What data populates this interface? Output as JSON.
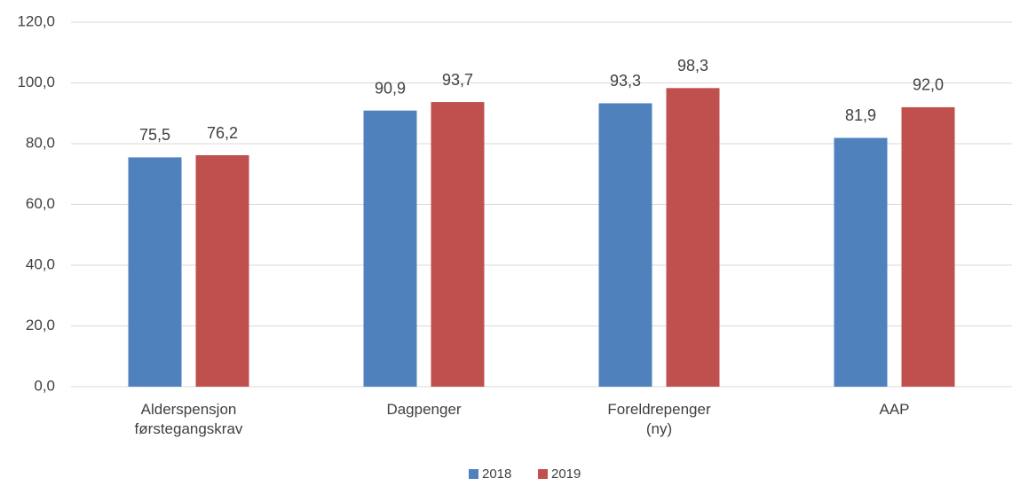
{
  "chart_data": {
    "type": "bar",
    "categories": [
      "Alderspensjon førstegangskrav",
      "Dagpenger",
      "Foreldrepenger (ny)",
      "AAP"
    ],
    "series": [
      {
        "name": "2018",
        "color": "#4f81bd",
        "values": [
          75.5,
          90.9,
          93.3,
          81.9
        ],
        "value_labels": [
          "75,5",
          "90,9",
          "93,3",
          "81,9"
        ]
      },
      {
        "name": "2019",
        "color": "#c0504d",
        "values": [
          76.2,
          93.7,
          98.3,
          92.0
        ],
        "value_labels": [
          "76,2",
          "93,7",
          "98,3",
          "92,0"
        ]
      }
    ],
    "ylim": [
      0,
      120
    ],
    "yticks": [
      {
        "value": 0,
        "label": "0,0"
      },
      {
        "value": 20,
        "label": "20,0"
      },
      {
        "value": 40,
        "label": "40,0"
      },
      {
        "value": 60,
        "label": "60,0"
      },
      {
        "value": 80,
        "label": "80,0"
      },
      {
        "value": 100,
        "label": "100,0"
      },
      {
        "value": 120,
        "label": "120,0"
      }
    ],
    "grid": true,
    "legend": "bottom"
  }
}
